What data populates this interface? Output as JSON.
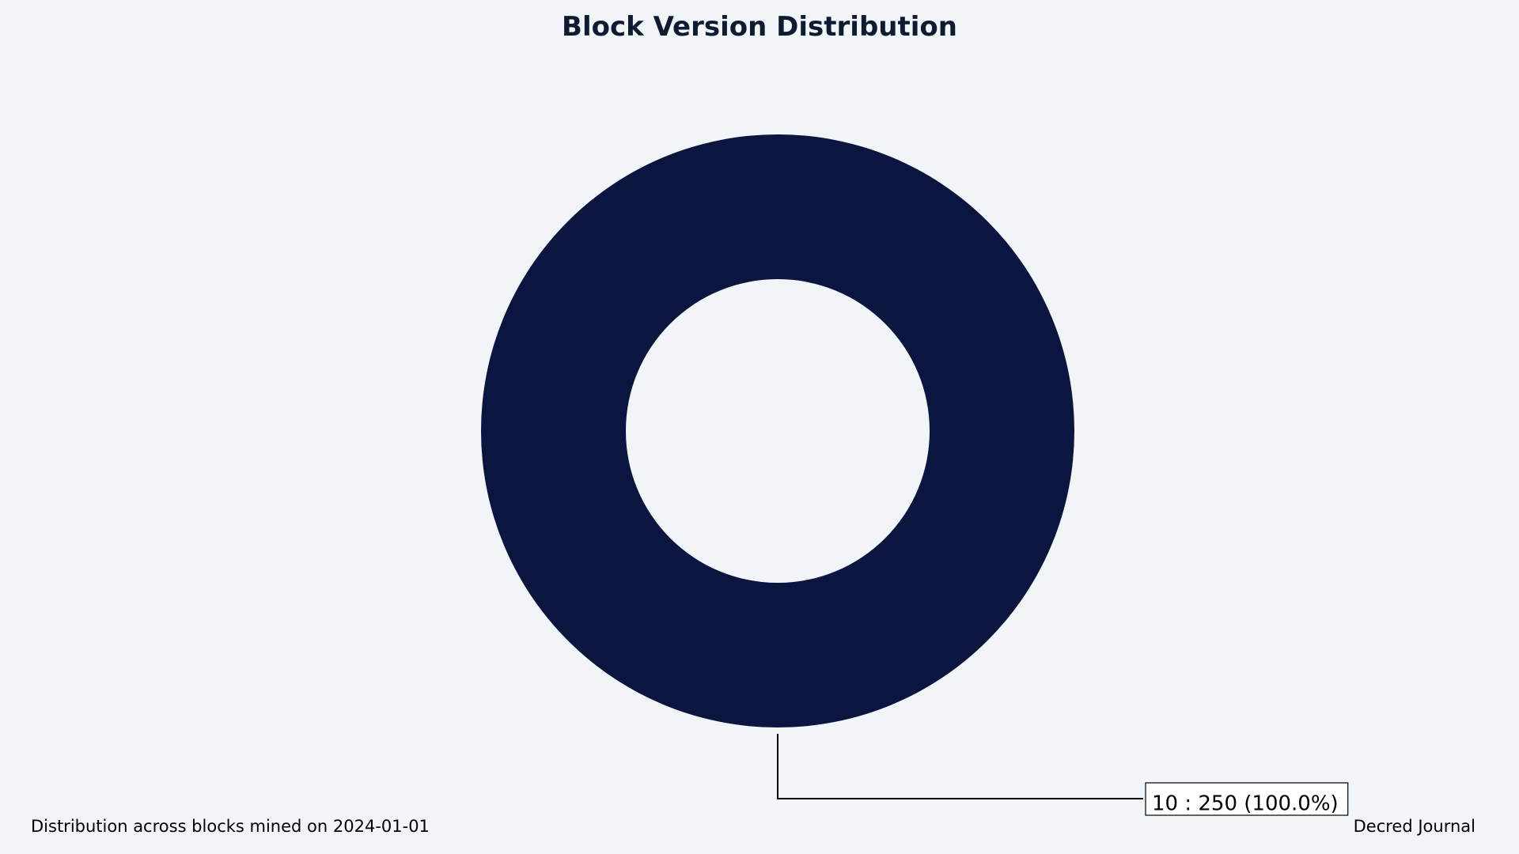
{
  "chart_data": {
    "type": "pie",
    "title": "Block Version Distribution",
    "donut": true,
    "slices": [
      {
        "label": "10",
        "value": 250,
        "percent": 100.0,
        "color": "#0a1540"
      }
    ],
    "annotations": [
      {
        "text": "10 : 250 (100.0%)"
      }
    ],
    "legend": "none"
  },
  "footer": {
    "caption": "Distribution across blocks mined on 2024-01-01",
    "source": "Decred Journal"
  },
  "colors": {
    "background": "#f1f5f7",
    "title": "#0f1b33",
    "slice": "#0a1540"
  }
}
